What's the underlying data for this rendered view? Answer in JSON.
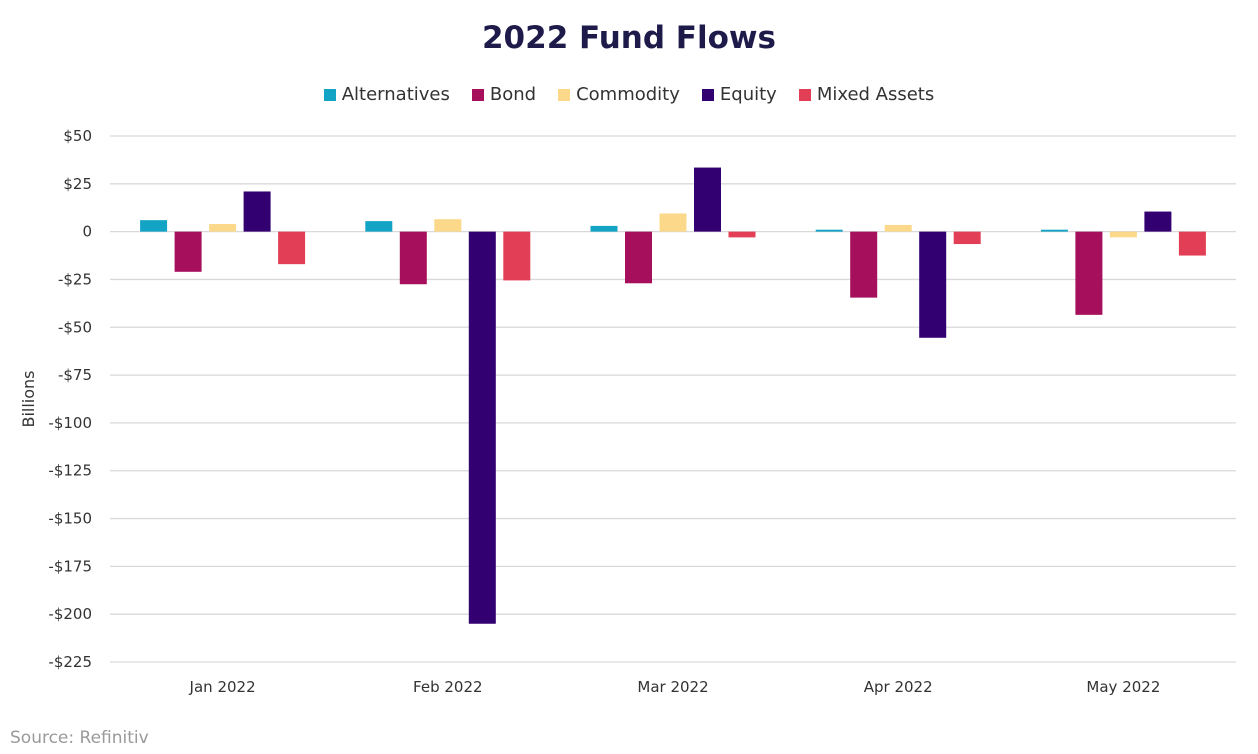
{
  "chart_data": {
    "type": "bar",
    "title": "2022 Fund Flows",
    "ylabel": "Billions",
    "xlabel": "",
    "categories": [
      "Jan 2022",
      "Feb 2022",
      "Mar 2022",
      "Apr 2022",
      "May 2022"
    ],
    "series": [
      {
        "name": "Alternatives",
        "color": "#13a3c4",
        "values": [
          6,
          5.5,
          3,
          1,
          1
        ]
      },
      {
        "name": "Bond",
        "color": "#a50f5c",
        "values": [
          -21,
          -27.5,
          -27,
          -34.5,
          -43.5
        ]
      },
      {
        "name": "Commodity",
        "color": "#fbd88a",
        "values": [
          4,
          6.5,
          9.5,
          3.5,
          -3
        ]
      },
      {
        "name": "Equity",
        "color": "#330072",
        "values": [
          21,
          -205,
          33.5,
          -55.5,
          10.5
        ]
      },
      {
        "name": "Mixed Assets",
        "color": "#e23f56",
        "values": [
          -17,
          -25.5,
          -3,
          -6.5,
          -12.5
        ]
      }
    ],
    "ylim": [
      -225,
      50
    ],
    "yticks": [
      50,
      25,
      0,
      -25,
      -50,
      -75,
      -100,
      -125,
      -150,
      -175,
      -200,
      -225
    ],
    "ytick_labels": [
      "$50",
      "$25",
      "0",
      "-$25",
      "-$50",
      "-$75",
      "-$100",
      "-$125",
      "-$150",
      "-$175",
      "-$200",
      "-$225"
    ],
    "grid": true,
    "legend_position": "top-center"
  },
  "source": "Source: Refinitiv"
}
